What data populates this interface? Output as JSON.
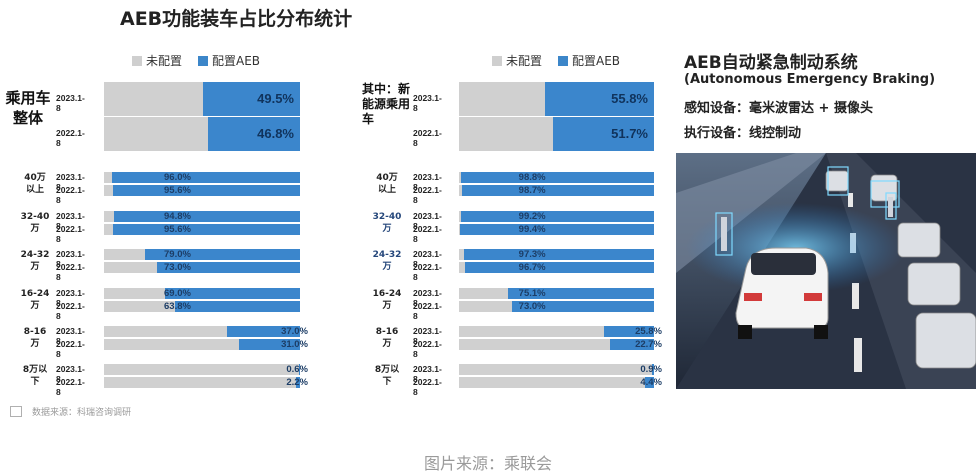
{
  "title": "AEB功能装车占比分布统计",
  "legend": {
    "not_equipped": "未配置",
    "equipped": "配置AEB"
  },
  "colors": {
    "not_equipped": "#d0d0d0",
    "equipped": "#3b86cc"
  },
  "chart_data": [
    {
      "type": "bar",
      "title": "",
      "series": [
        {
          "name": "配置AEB",
          "unit": "%"
        }
      ],
      "groups": [
        {
          "label": "乘用车整体",
          "big": true,
          "rows": [
            {
              "period": "2023.1-8",
              "value": 49.5,
              "label": "49.5%"
            },
            {
              "period": "2022.1-8",
              "value": 46.8,
              "label": "46.8%"
            }
          ]
        },
        {
          "label": "40万以上",
          "rows": [
            {
              "period": "2023.1-8",
              "value": 96.0,
              "label": "96.0%"
            },
            {
              "period": "2022.1-8",
              "value": 95.6,
              "label": "95.6%"
            }
          ]
        },
        {
          "label": "32-40万",
          "rows": [
            {
              "period": "2023.1-8",
              "value": 94.8,
              "label": "94.8%"
            },
            {
              "period": "2022.1-8",
              "value": 95.6,
              "label": "95.6%"
            }
          ]
        },
        {
          "label": "24-32万",
          "rows": [
            {
              "period": "2023.1-8",
              "value": 79.0,
              "label": "79.0%"
            },
            {
              "period": "2022.1-8",
              "value": 73.0,
              "label": "73.0%"
            }
          ]
        },
        {
          "label": "16-24万",
          "rows": [
            {
              "period": "2023.1-8",
              "value": 69.0,
              "label": "69.0%"
            },
            {
              "period": "2022.1-8",
              "value": 63.8,
              "label": "63.8%"
            }
          ]
        },
        {
          "label": "8-16万",
          "rows": [
            {
              "period": "2023.1-8",
              "value": 37.0,
              "label": "37.0%"
            },
            {
              "period": "2022.1-8",
              "value": 31.0,
              "label": "31.0%"
            }
          ]
        },
        {
          "label": "8万以下",
          "rows": [
            {
              "period": "2023.1-8",
              "value": 0.6,
              "label": "0.6%"
            },
            {
              "period": "2022.1-8",
              "value": 2.2,
              "label": "2.2%"
            }
          ]
        }
      ]
    },
    {
      "type": "bar",
      "title": "",
      "series": [
        {
          "name": "配置AEB",
          "unit": "%"
        }
      ],
      "groups": [
        {
          "label": "其中：新能源乘用车",
          "big": true,
          "rows": [
            {
              "period": "2023.1-8",
              "value": 55.8,
              "label": "55.8%"
            },
            {
              "period": "2022.1-8",
              "value": 51.7,
              "label": "51.7%"
            }
          ]
        },
        {
          "label": "40万以上",
          "rows": [
            {
              "period": "2023.1-8",
              "value": 98.8,
              "label": "98.8%"
            },
            {
              "period": "2022.1-8",
              "value": 98.7,
              "label": "98.7%"
            }
          ]
        },
        {
          "label": "32-40万",
          "rows": [
            {
              "period": "2023.1-8",
              "value": 99.2,
              "label": "99.2%"
            },
            {
              "period": "2022.1-8",
              "value": 99.4,
              "label": "99.4%"
            }
          ]
        },
        {
          "label": "24-32万",
          "rows": [
            {
              "period": "2023.1-8",
              "value": 97.3,
              "label": "97.3%"
            },
            {
              "period": "2022.1-8",
              "value": 96.7,
              "label": "96.7%"
            }
          ]
        },
        {
          "label": "16-24万",
          "rows": [
            {
              "period": "2023.1-8",
              "value": 75.1,
              "label": "75.1%"
            },
            {
              "period": "2022.1-8",
              "value": 73.0,
              "label": "73.0%"
            }
          ]
        },
        {
          "label": "8-16万",
          "rows": [
            {
              "period": "2023.1-8",
              "value": 25.8,
              "label": "25.8%"
            },
            {
              "period": "2022.1-8",
              "value": 22.7,
              "label": "22.7%"
            }
          ]
        },
        {
          "label": "8万以下",
          "rows": [
            {
              "period": "2023.1-8",
              "value": 0.9,
              "label": "0.9%"
            },
            {
              "period": "2022.1-8",
              "value": 4.4,
              "label": "4.4%"
            }
          ]
        }
      ]
    }
  ],
  "right_panel": {
    "title": "AEB自动紧急制动系统",
    "subtitle": "(Autonomous Emergency Braking)",
    "sensing": "感知设备：毫米波雷达 + 摄像头",
    "actuation": "执行设备：线控制动"
  },
  "source_small": "数据来源：科瑞咨询调研",
  "source_big": "图片来源：乘联会"
}
